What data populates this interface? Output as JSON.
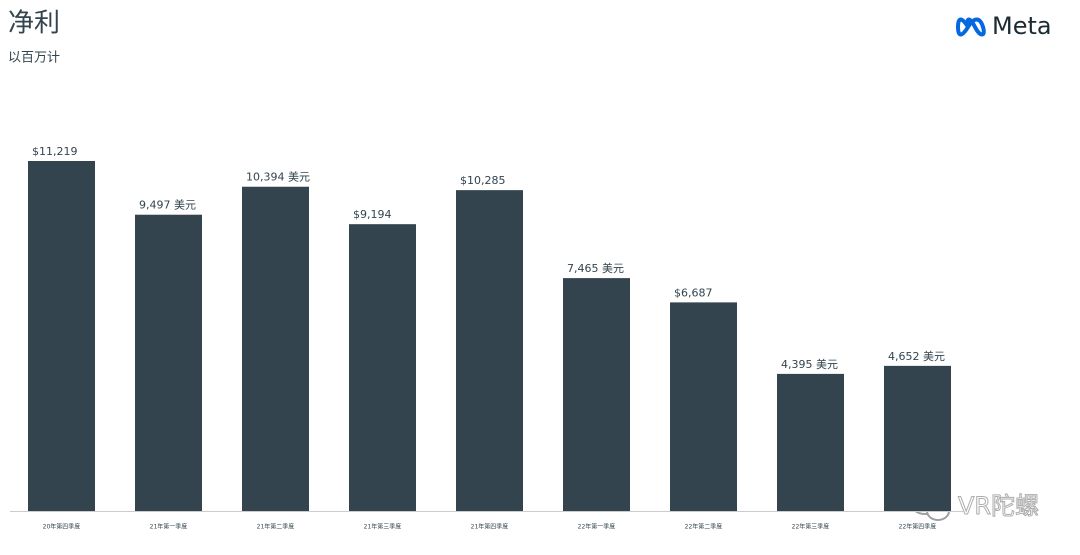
{
  "chart_data": {
    "type": "bar",
    "title": "净利",
    "subtitle": "以百万计",
    "logo": "Meta",
    "watermark": "VR陀螺",
    "categories": [
      "20年第四季度",
      "21年第一季度",
      "21年第二季度",
      "21年第三季度",
      "21年第四季度",
      "22年第一季度",
      "22年第二季度",
      "22年第三季度",
      "22年第四季度"
    ],
    "values": [
      11219,
      9497,
      10394,
      9194,
      10285,
      7465,
      6687,
      4395,
      4652
    ],
    "value_labels": [
      "$11,219",
      "9,497 美元",
      "10,394 美元",
      "$9,194",
      "$10,285",
      "7,465 美元",
      "$6,687",
      "4,395 美元",
      "4,652 美元"
    ],
    "color": "#33444f"
  }
}
